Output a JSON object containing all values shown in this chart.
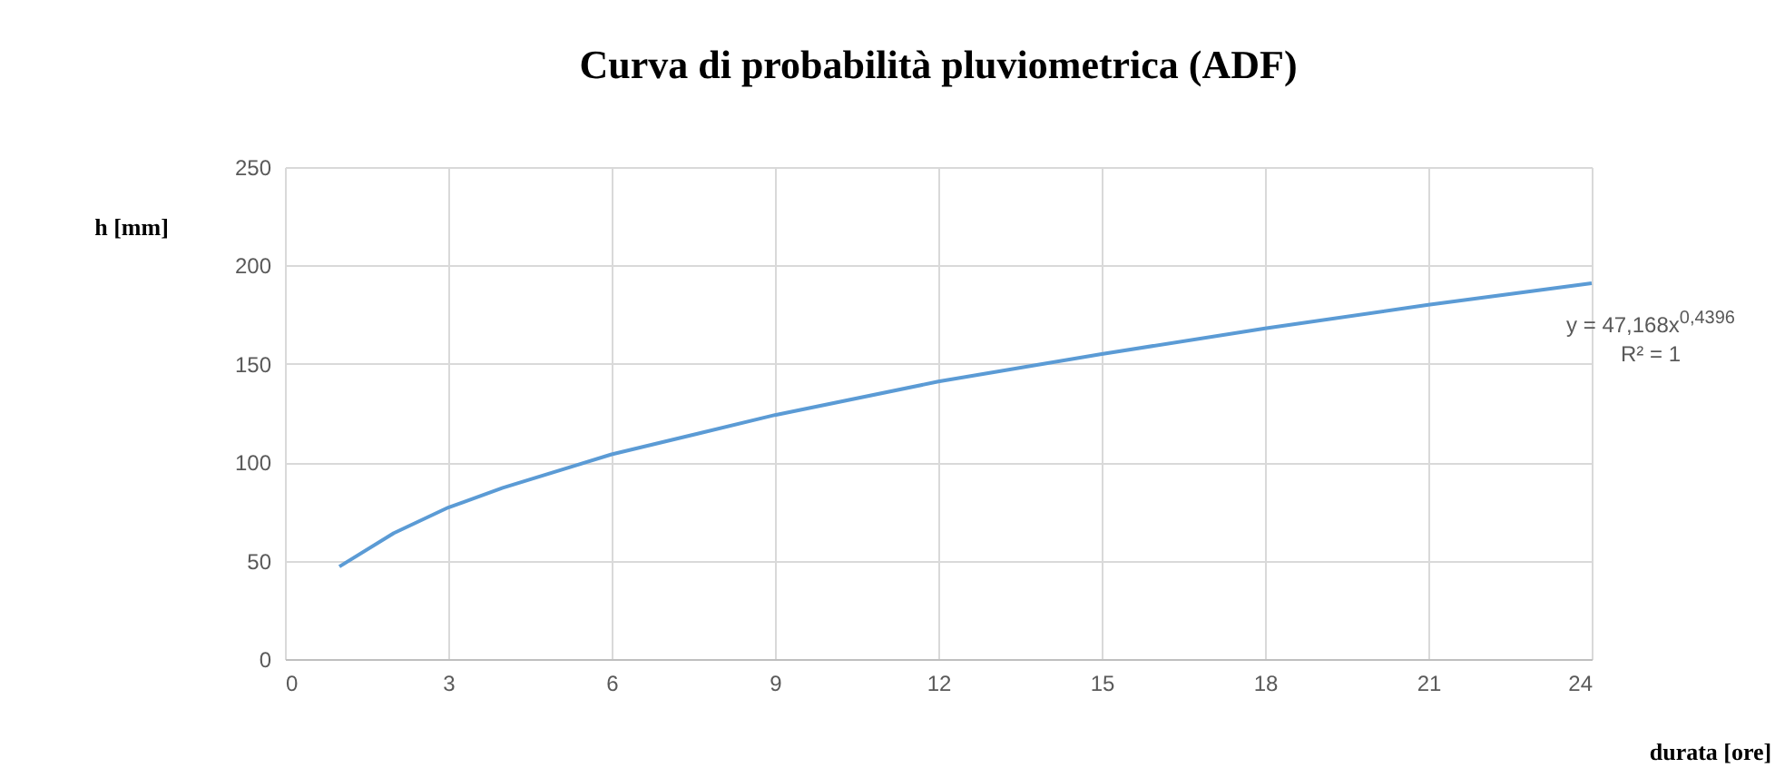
{
  "chart_data": {
    "type": "line",
    "title": "Curva di probabilità pluviometrica (ADF)",
    "xlabel": "durata [ore]",
    "ylabel": "h [mm]",
    "annotations": [
      "y = 47,168x$^{0,4396}$",
      "R² = 1"
    ],
    "x": [
      1,
      2,
      3,
      4,
      6,
      9,
      12,
      15,
      18,
      21,
      24
    ],
    "series": [
      {
        "color": "#5b9bd5",
        "values": [
          47,
          64,
          77,
          87,
          104,
          124,
          141,
          155,
          168,
          180,
          191
        ]
      }
    ],
    "xlim": [
      0,
      24
    ],
    "ylim": [
      0,
      250
    ],
    "xticks": [
      0,
      3,
      6,
      9,
      12,
      15,
      18,
      21,
      24
    ],
    "yticks": [
      0,
      50,
      100,
      150,
      200,
      250
    ],
    "grid": true
  }
}
